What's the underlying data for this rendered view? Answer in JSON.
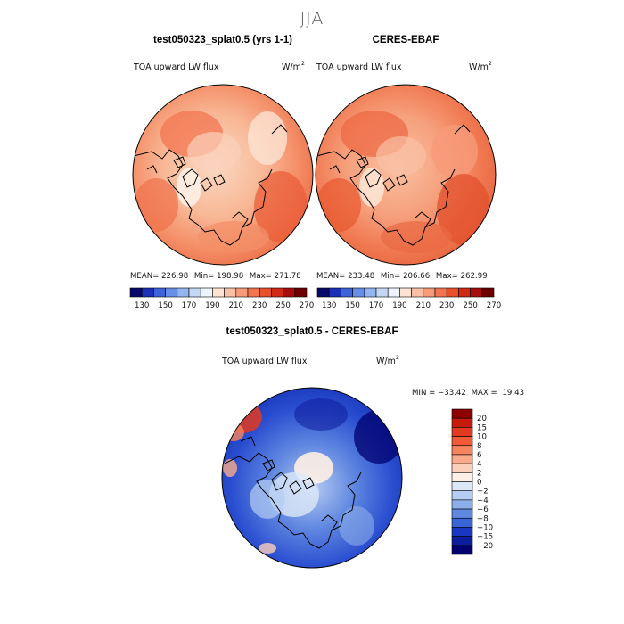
{
  "season": "JJA",
  "panels": {
    "model": {
      "title": "test050323_splat0.5 (yrs 1-1)",
      "variable": "TOA upward LW flux",
      "units_base": "W/m",
      "units_exp": "2",
      "stats": {
        "mean_label": "MEAN=",
        "mean": "226.98",
        "min_label": "Min=",
        "min": "198.98",
        "max_label": "Max=",
        "max": "271.78"
      }
    },
    "obs": {
      "title": "CERES-EBAF",
      "variable": "TOA upward LW flux",
      "units_base": "W/m",
      "units_exp": "2",
      "stats": {
        "mean_label": "MEAN=",
        "mean": "233.48",
        "min_label": "Min=",
        "min": "206.66",
        "max_label": "Max=",
        "max": "262.99"
      }
    },
    "diff": {
      "title": "test050323_splat0.5 - CERES-EBAF",
      "variable": "TOA upward LW flux",
      "units_base": "W/m",
      "units_exp": "2",
      "stats": {
        "min_label": "MIN =",
        "min": "−33.42",
        "max_label": "MAX =",
        "max": "19.43"
      }
    }
  },
  "chart_data": [
    {
      "type": "heatmap",
      "projection": "north-polar-stereographic",
      "title": "test050323_splat0.5 (yrs 1-1)",
      "variable": "TOA upward LW flux",
      "units": "W/m2",
      "mean": 226.98,
      "min": 198.98,
      "max": 271.78,
      "colorbar": {
        "orientation": "horizontal",
        "levels": [
          130,
          150,
          170,
          190,
          210,
          230,
          250,
          270
        ],
        "tick_labels": [
          "130",
          "150",
          "170",
          "190",
          "210",
          "230",
          "250",
          "270"
        ],
        "colors": [
          "#08086b",
          "#1c30b8",
          "#3c64d8",
          "#6690e8",
          "#94b6f0",
          "#c4d8f6",
          "#eef4fc",
          "#fde3d3",
          "#fac0a5",
          "#f79a78",
          "#f37550",
          "#e8502c",
          "#d12a14",
          "#a70d0c",
          "#6e0000"
        ]
      }
    },
    {
      "type": "heatmap",
      "projection": "north-polar-stereographic",
      "title": "CERES-EBAF",
      "variable": "TOA upward LW flux",
      "units": "W/m2",
      "mean": 233.48,
      "min": 206.66,
      "max": 262.99,
      "colorbar": {
        "orientation": "horizontal",
        "levels": [
          130,
          150,
          170,
          190,
          210,
          230,
          250,
          270
        ],
        "tick_labels": [
          "130",
          "150",
          "170",
          "190",
          "210",
          "230",
          "250",
          "270"
        ],
        "colors": [
          "#08086b",
          "#1c30b8",
          "#3c64d8",
          "#6690e8",
          "#94b6f0",
          "#c4d8f6",
          "#eef4fc",
          "#fde3d3",
          "#fac0a5",
          "#f79a78",
          "#f37550",
          "#e8502c",
          "#d12a14",
          "#a70d0c",
          "#6e0000"
        ]
      }
    },
    {
      "type": "heatmap",
      "projection": "north-polar-stereographic",
      "title": "test050323_splat0.5 - CERES-EBAF",
      "variable": "TOA upward LW flux",
      "units": "W/m2",
      "min": -33.42,
      "max": 19.43,
      "colorbar": {
        "orientation": "vertical",
        "levels": [
          20,
          15,
          10,
          8,
          6,
          4,
          2,
          0,
          -2,
          -4,
          -6,
          -8,
          -10,
          -15,
          -20
        ],
        "tick_labels": [
          "20",
          "15",
          "10",
          "8",
          "6",
          "4",
          "2",
          "0",
          "−2",
          "−4",
          "−6",
          "−8",
          "−10",
          "−15",
          "−20"
        ],
        "colors": [
          "#8c0000",
          "#c61a0c",
          "#e23a20",
          "#f05a38",
          "#f6845e",
          "#f9ab8c",
          "#fbd0ba",
          "#fdf0e6",
          "#dce8f8",
          "#b5cdf2",
          "#8caeea",
          "#608ae0",
          "#3864d6",
          "#1838c4",
          "#0c1c9c",
          "#00006e"
        ]
      }
    }
  ]
}
